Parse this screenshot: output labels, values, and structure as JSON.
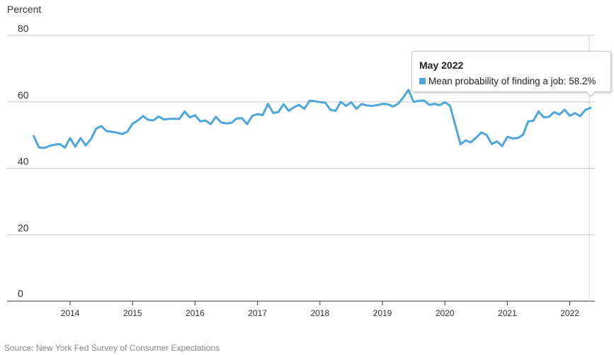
{
  "chart_data": {
    "type": "line",
    "ylabel": "Percent",
    "ylim": [
      0,
      80
    ],
    "yticks": [
      "0",
      "20",
      "40",
      "60",
      "80"
    ],
    "xticks": [
      "2014",
      "2015",
      "2016",
      "2017",
      "2018",
      "2019",
      "2020",
      "2021",
      "2022"
    ],
    "grid": "horizontal",
    "series": [
      {
        "name": "Mean probability of finding a job",
        "color": "#4ea6dc",
        "x": [
          "2013-06",
          "2013-07",
          "2013-08",
          "2013-09",
          "2013-10",
          "2013-11",
          "2013-12",
          "2014-01",
          "2014-02",
          "2014-03",
          "2014-04",
          "2014-05",
          "2014-06",
          "2014-07",
          "2014-08",
          "2014-09",
          "2014-10",
          "2014-11",
          "2014-12",
          "2015-01",
          "2015-02",
          "2015-03",
          "2015-04",
          "2015-05",
          "2015-06",
          "2015-07",
          "2015-08",
          "2015-09",
          "2015-10",
          "2015-11",
          "2015-12",
          "2016-01",
          "2016-02",
          "2016-03",
          "2016-04",
          "2016-05",
          "2016-06",
          "2016-07",
          "2016-08",
          "2016-09",
          "2016-10",
          "2016-11",
          "2016-12",
          "2017-01",
          "2017-02",
          "2017-03",
          "2017-04",
          "2017-05",
          "2017-06",
          "2017-07",
          "2017-08",
          "2017-09",
          "2017-10",
          "2017-11",
          "2017-12",
          "2018-01",
          "2018-02",
          "2018-03",
          "2018-04",
          "2018-05",
          "2018-06",
          "2018-07",
          "2018-08",
          "2018-09",
          "2018-10",
          "2018-11",
          "2018-12",
          "2019-01",
          "2019-02",
          "2019-03",
          "2019-04",
          "2019-05",
          "2019-06",
          "2019-07",
          "2019-08",
          "2019-09",
          "2019-10",
          "2019-11",
          "2019-12",
          "2020-01",
          "2020-02",
          "2020-03",
          "2020-04",
          "2020-05",
          "2020-06",
          "2020-07",
          "2020-08",
          "2020-09",
          "2020-10",
          "2020-11",
          "2020-12",
          "2021-01",
          "2021-02",
          "2021-03",
          "2021-04",
          "2021-05",
          "2021-06",
          "2021-07",
          "2021-08",
          "2021-09",
          "2021-10",
          "2021-11",
          "2021-12",
          "2022-01",
          "2022-02",
          "2022-03",
          "2022-04",
          "2022-05"
        ],
        "values": [
          49.7,
          46.3,
          46.1,
          46.7,
          47.1,
          47.3,
          46.2,
          49.1,
          46.5,
          49.1,
          46.9,
          48.8,
          52.0,
          52.7,
          51.2,
          51.0,
          50.7,
          50.3,
          51.0,
          53.4,
          54.4,
          55.7,
          54.6,
          54.4,
          55.6,
          54.7,
          54.9,
          54.9,
          54.9,
          57.1,
          55.3,
          56.0,
          54.1,
          54.4,
          53.3,
          55.5,
          53.8,
          53.5,
          53.7,
          55.0,
          55.1,
          53.3,
          55.8,
          56.3,
          56.0,
          59.4,
          56.7,
          56.9,
          59.3,
          57.3,
          58.4,
          59.1,
          57.9,
          60.3,
          60.2,
          59.9,
          59.8,
          57.6,
          57.3,
          60.0,
          58.8,
          59.9,
          57.9,
          59.4,
          58.9,
          58.8,
          59.0,
          59.4,
          59.3,
          58.6,
          59.4,
          61.3,
          63.6,
          60.0,
          60.3,
          60.4,
          59.1,
          59.4,
          59.0,
          59.9,
          58.8,
          53.0,
          47.2,
          48.4,
          47.8,
          49.2,
          50.8,
          50.1,
          47.3,
          48.1,
          46.7,
          49.5,
          49.0,
          49.1,
          50.1,
          54.1,
          54.3,
          57.1,
          55.3,
          55.5,
          56.9,
          56.2,
          57.6,
          55.8,
          56.6,
          55.7,
          57.6,
          58.2
        ]
      }
    ]
  },
  "tooltip": {
    "title": "May 2022",
    "text": "Mean probability of finding a job: 58.2%"
  },
  "source": "Source: New York Fed Survey of Consumer Expectations"
}
